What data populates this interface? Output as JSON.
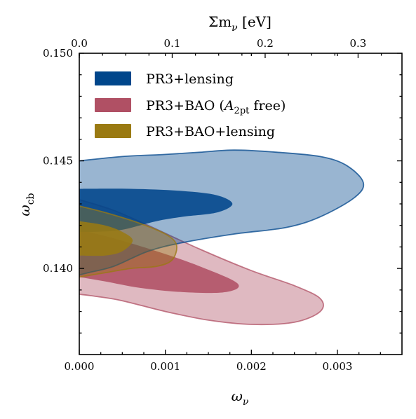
{
  "chart_data": {
    "type": "contour",
    "xlabel": "ω",
    "xlabel_sub": "ν",
    "ylabel": "ω",
    "ylabel_sub": "cb",
    "top_xlabel": "Σm",
    "top_xlabel_sub": "ν",
    "top_xlabel_unit": " [eV]",
    "xlim": [
      0.0,
      0.00375
    ],
    "ylim": [
      0.136,
      0.15
    ],
    "xticks": [
      0.0,
      0.001,
      0.002,
      0.003
    ],
    "xtick_labels": [
      "0.000",
      "0.001",
      "0.002",
      "0.003"
    ],
    "yticks": [
      0.14,
      0.145,
      0.15
    ],
    "ytick_labels": [
      "0.140",
      "0.145",
      "0.150"
    ],
    "top_ticks": [
      0.0,
      0.1,
      0.2,
      0.3
    ],
    "top_tick_labels": [
      "0.0",
      "0.1",
      "0.2",
      "0.3"
    ],
    "top_tick_positions_omega_nu": [
      0.0,
      0.00108,
      0.00216,
      0.00324
    ],
    "grid": false,
    "legend_position": "top-left",
    "series": [
      {
        "name": "PR3+lensing",
        "color": "#00468b",
        "contours": [
          {
            "level": "95%",
            "points": [
              [
                0,
                0.145
              ],
              [
                0.0005,
                0.1452
              ],
              [
                0.001,
                0.1453
              ],
              [
                0.0014,
                0.1454
              ],
              [
                0.0018,
                0.1455
              ],
              [
                0.0023,
                0.1454
              ],
              [
                0.0028,
                0.1452
              ],
              [
                0.0031,
                0.1448
              ],
              [
                0.0033,
                0.144
              ],
              [
                0.0032,
                0.1433
              ],
              [
                0.0028,
                0.1424
              ],
              [
                0.0024,
                0.1419
              ],
              [
                0.0018,
                0.1416
              ],
              [
                0.0012,
                0.1412
              ],
              [
                0.0008,
                0.1408
              ],
              [
                0.0004,
                0.1401
              ],
              [
                0.0001,
                0.1398
              ],
              [
                0,
                0.1397
              ]
            ]
          },
          {
            "level": "68%",
            "points": [
              [
                0,
                0.1437
              ],
              [
                0.0006,
                0.1437
              ],
              [
                0.0012,
                0.1436
              ],
              [
                0.0016,
                0.1434
              ],
              [
                0.00178,
                0.143
              ],
              [
                0.0016,
                0.1426
              ],
              [
                0.0012,
                0.1424
              ],
              [
                0.0009,
                0.1422
              ],
              [
                0.0005,
                0.1418
              ],
              [
                0.0002,
                0.1417
              ],
              [
                0,
                0.1417
              ]
            ]
          }
        ]
      },
      {
        "name": "PR3+BAO (A2pt free)",
        "legend_prefix": "PR3+BAO (",
        "legend_math": "A",
        "legend_math_sub": "2pt",
        "legend_suffix": " free)",
        "color": "#b05064",
        "contours": [
          {
            "level": "95%",
            "points": [
              [
                0,
                0.1432
              ],
              [
                0.0004,
                0.1427
              ],
              [
                0.0008,
                0.142
              ],
              [
                0.0014,
                0.1409
              ],
              [
                0.002,
                0.1399
              ],
              [
                0.0025,
                0.1392
              ],
              [
                0.0028,
                0.1386
              ],
              [
                0.0028,
                0.138
              ],
              [
                0.0025,
                0.1375
              ],
              [
                0.002,
                0.1374
              ],
              [
                0.0015,
                0.1376
              ],
              [
                0.001,
                0.138
              ],
              [
                0.0005,
                0.1385
              ],
              [
                0.0002,
                0.1387
              ],
              [
                0,
                0.1388
              ]
            ]
          },
          {
            "level": "68%",
            "points": [
              [
                0,
                0.1418
              ],
              [
                0.0004,
                0.1414
              ],
              [
                0.0009,
                0.1408
              ],
              [
                0.0014,
                0.1401
              ],
              [
                0.00184,
                0.1393
              ],
              [
                0.0017,
                0.1389
              ],
              [
                0.0012,
                0.1389
              ],
              [
                0.0007,
                0.1391
              ],
              [
                0.0003,
                0.1394
              ],
              [
                0,
                0.1396
              ]
            ]
          }
        ]
      },
      {
        "name": "PR3+BAO+lensing",
        "color": "#9a7a12",
        "contours": [
          {
            "level": "95%",
            "points": [
              [
                0,
                0.1429
              ],
              [
                0.0003,
                0.1426
              ],
              [
                0.0007,
                0.1421
              ],
              [
                0.001,
                0.1416
              ],
              [
                0.00113,
                0.1411
              ],
              [
                0.00108,
                0.1404
              ],
              [
                0.0009,
                0.1401
              ],
              [
                0.0006,
                0.14
              ],
              [
                0.0003,
                0.1398
              ],
              [
                0,
                0.1396
              ]
            ]
          },
          {
            "level": "68%",
            "points": [
              [
                0,
                0.1422
              ],
              [
                0.0003,
                0.142
              ],
              [
                0.0005,
                0.1417
              ],
              [
                0.00062,
                0.1413
              ],
              [
                0.0005,
                0.1408
              ],
              [
                0.0003,
                0.1406
              ],
              [
                0,
                0.1406
              ]
            ]
          }
        ]
      }
    ]
  }
}
